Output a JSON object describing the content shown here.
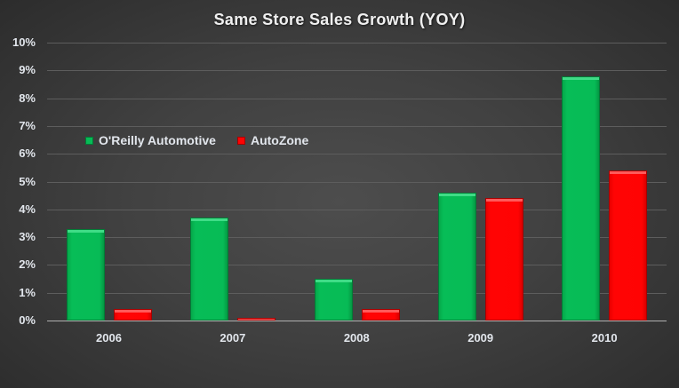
{
  "chart_data": {
    "type": "bar",
    "title": "Same Store Sales Growth (YOY)",
    "xlabel": "",
    "ylabel": "",
    "categories": [
      "2006",
      "2007",
      "2008",
      "2009",
      "2010"
    ],
    "series": [
      {
        "name": "O'Reilly Automotive",
        "color": "#07BB56",
        "values": [
          3.3,
          3.7,
          1.5,
          4.6,
          8.8
        ]
      },
      {
        "name": "AutoZone",
        "color": "#FF0303",
        "values": [
          0.4,
          0.1,
          0.4,
          4.4,
          5.4
        ]
      }
    ],
    "ylim": [
      0,
      10
    ],
    "y_ticks": [
      "0%",
      "1%",
      "2%",
      "3%",
      "4%",
      "5%",
      "6%",
      "7%",
      "8%",
      "9%",
      "10%"
    ],
    "value_format": "percent",
    "grid": true,
    "legend_position": "inside-upper-left"
  }
}
